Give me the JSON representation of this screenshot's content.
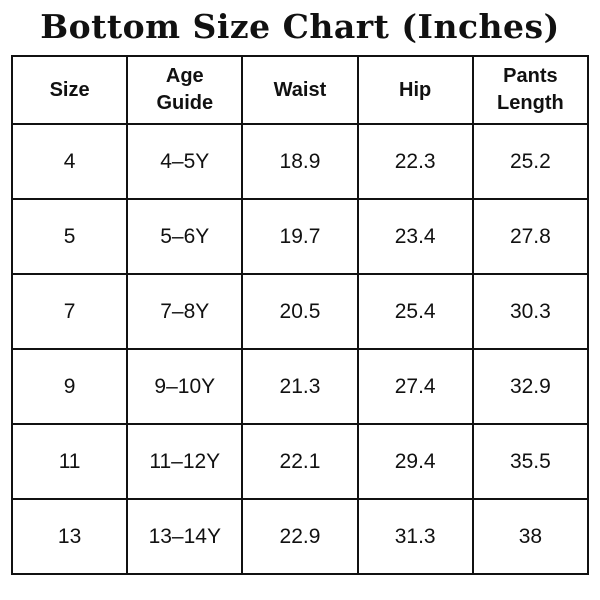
{
  "title": "Bottom Size Chart (Inches)",
  "colors": {
    "text": "#111111",
    "border": "#111111",
    "background": "#ffffff"
  },
  "table": {
    "headers": [
      "Size",
      "Age Guide",
      "Waist",
      "Hip",
      "Pants Length"
    ],
    "rows": [
      {
        "size": "4",
        "age_guide": "4–5Y",
        "waist": "18.9",
        "hip": "22.3",
        "pants_length": "25.2"
      },
      {
        "size": "5",
        "age_guide": "5–6Y",
        "waist": "19.7",
        "hip": "23.4",
        "pants_length": "27.8"
      },
      {
        "size": "7",
        "age_guide": "7–8Y",
        "waist": "20.5",
        "hip": "25.4",
        "pants_length": "30.3"
      },
      {
        "size": "9",
        "age_guide": "9–10Y",
        "waist": "21.3",
        "hip": "27.4",
        "pants_length": "32.9"
      },
      {
        "size": "11",
        "age_guide": "11–12Y",
        "waist": "22.1",
        "hip": "29.4",
        "pants_length": "35.5"
      },
      {
        "size": "13",
        "age_guide": "13–14Y",
        "waist": "22.9",
        "hip": "31.3",
        "pants_length": "38"
      }
    ]
  }
}
